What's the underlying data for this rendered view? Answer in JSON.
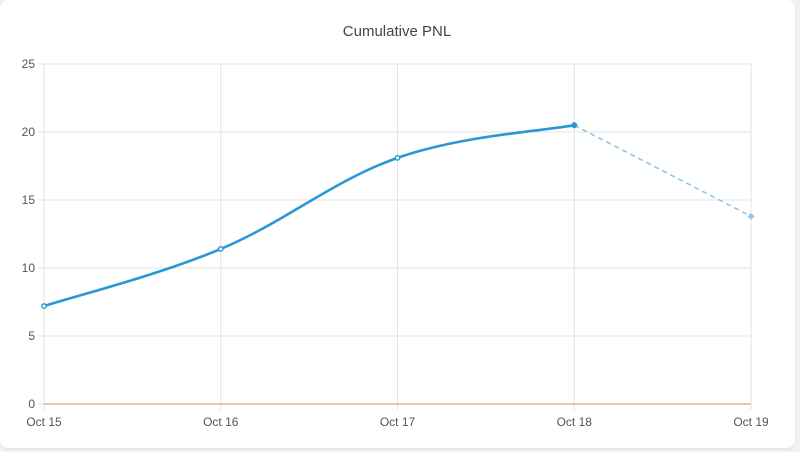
{
  "chart_data": {
    "type": "line",
    "title": "Cumulative PNL",
    "xlabel": "",
    "ylabel": "",
    "categories": [
      "Oct 15",
      "Oct 16",
      "Oct 17",
      "Oct 18",
      "Oct 19"
    ],
    "ylim": [
      0,
      25
    ],
    "yticks": [
      "0",
      "5",
      "10",
      "15",
      "20",
      "25"
    ],
    "grid": true,
    "series": [
      {
        "values": [
          7.2,
          11.4,
          18.1,
          20.5,
          13.8
        ],
        "projected_from_index": 3
      }
    ],
    "baseline": 0,
    "colors": {
      "series": "#2b96d6",
      "projected": "#8ec5ea",
      "baseline": "#d9a48a",
      "grid": "#e3e3e3"
    }
  }
}
